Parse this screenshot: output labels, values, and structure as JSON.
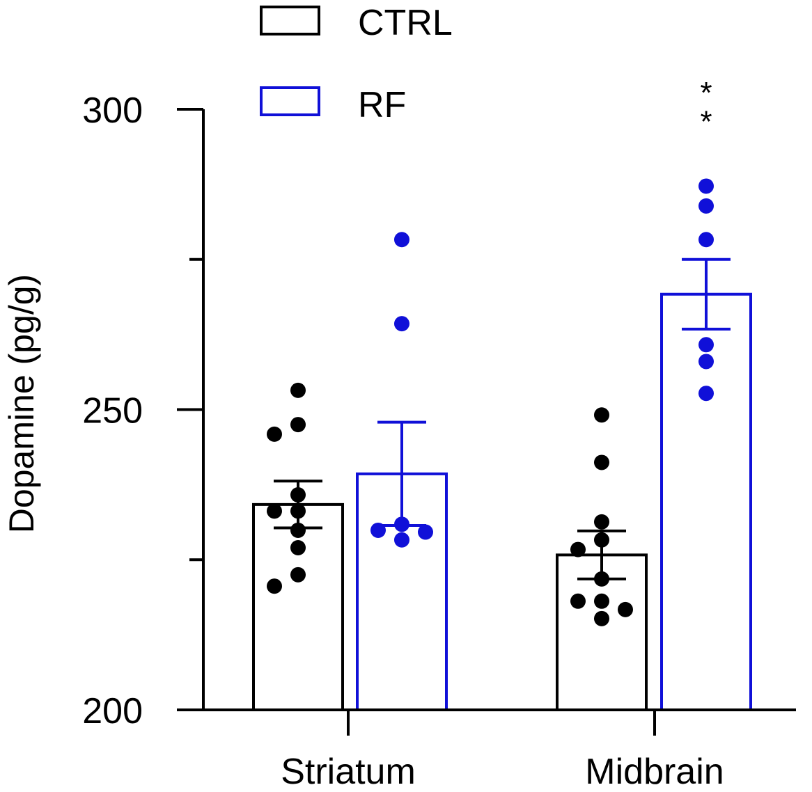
{
  "chart_data": {
    "type": "bar",
    "title": "",
    "xlabel": "",
    "ylabel": "Dopamine (pg/g)",
    "ylim": [
      200,
      300
    ],
    "yticks_major": [
      200,
      250,
      300
    ],
    "yticks_minor": [
      225,
      275
    ],
    "categories": [
      "Striatum",
      "Midbrain"
    ],
    "legend": {
      "placement": "top-left"
    },
    "colors": {
      "CTRL": "#000000",
      "RF": "#1010d8"
    },
    "series": [
      {
        "name": "CTRL",
        "values": [
          234.2,
          225.8
        ],
        "sem": [
          3.9,
          4.0
        ],
        "points": [
          [
            253.2,
            247.5,
            245.9,
            235.8,
            233.1,
            233.1,
            229.9,
            227.0,
            222.5,
            220.6
          ],
          [
            249.1,
            241.2,
            231.3,
            228.3,
            226.7,
            221.8,
            218.1,
            218.1,
            216.7,
            215.2
          ]
        ]
      },
      {
        "name": "RF",
        "values": [
          239.3,
          269.2
        ],
        "sem": [
          8.6,
          5.8
        ],
        "points": [
          [
            278.3,
            264.3,
            230.9,
            229.9,
            229.6,
            228.3
          ],
          [
            287.2,
            283.9,
            278.3,
            260.8,
            258.0,
            252.7
          ]
        ]
      }
    ],
    "annotations": [
      {
        "text": "*",
        "category": "Midbrain",
        "series": "RF",
        "value": 304.5
      },
      {
        "text": "*",
        "category": "Midbrain",
        "series": "RF",
        "value": 299.7
      }
    ]
  }
}
